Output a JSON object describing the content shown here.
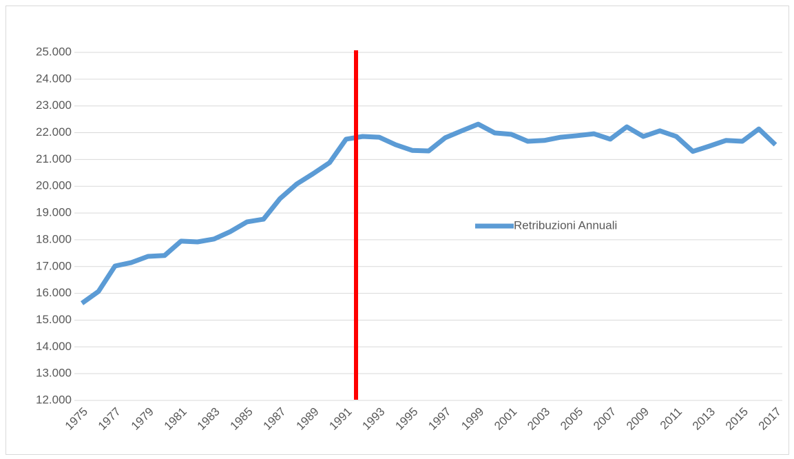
{
  "chart_data": {
    "type": "line",
    "categories": [
      "1975",
      null,
      "1977",
      null,
      "1979",
      null,
      "1981",
      null,
      "1983",
      null,
      "1985",
      null,
      "1987",
      null,
      "1989",
      null,
      "1991",
      null,
      "1993",
      null,
      "1995",
      null,
      "1997",
      null,
      "1999",
      null,
      "2001",
      null,
      "2003",
      null,
      "2005",
      null,
      "2007",
      null,
      "2009",
      null,
      "2011",
      null,
      "2013",
      null,
      "2015",
      null,
      "2017"
    ],
    "series": [
      {
        "name": "Retribuzioni Annuali",
        "color": "#5b9bd5",
        "values": [
          15630,
          16070,
          17020,
          17150,
          17380,
          17410,
          17950,
          17920,
          18030,
          18310,
          18670,
          18770,
          19540,
          20080,
          20470,
          20880,
          21760,
          21860,
          21830,
          21550,
          21340,
          21320,
          21810,
          22070,
          22320,
          21990,
          21940,
          21680,
          21710,
          21830,
          21890,
          21960,
          21760,
          22220,
          21860,
          22070,
          21860,
          21300,
          21500,
          21710,
          21680,
          22140,
          21550
        ]
      }
    ],
    "ylim": [
      12000,
      25000
    ],
    "yticks": [
      {
        "value": 12000,
        "label": "12.000"
      },
      {
        "value": 13000,
        "label": "13.000"
      },
      {
        "value": 14000,
        "label": "14.000"
      },
      {
        "value": 15000,
        "label": "15.000"
      },
      {
        "value": 16000,
        "label": "16.000"
      },
      {
        "value": 17000,
        "label": "17.000"
      },
      {
        "value": 18000,
        "label": "18.000"
      },
      {
        "value": 19000,
        "label": "19.000"
      },
      {
        "value": 20000,
        "label": "20.000"
      },
      {
        "value": 21000,
        "label": "21.000"
      },
      {
        "value": 22000,
        "label": "22.000"
      },
      {
        "value": 23000,
        "label": "23.000"
      },
      {
        "value": 24000,
        "label": "24.000"
      },
      {
        "value": 25000,
        "label": "25.000"
      }
    ],
    "grid": true,
    "legend": "right"
  }
}
